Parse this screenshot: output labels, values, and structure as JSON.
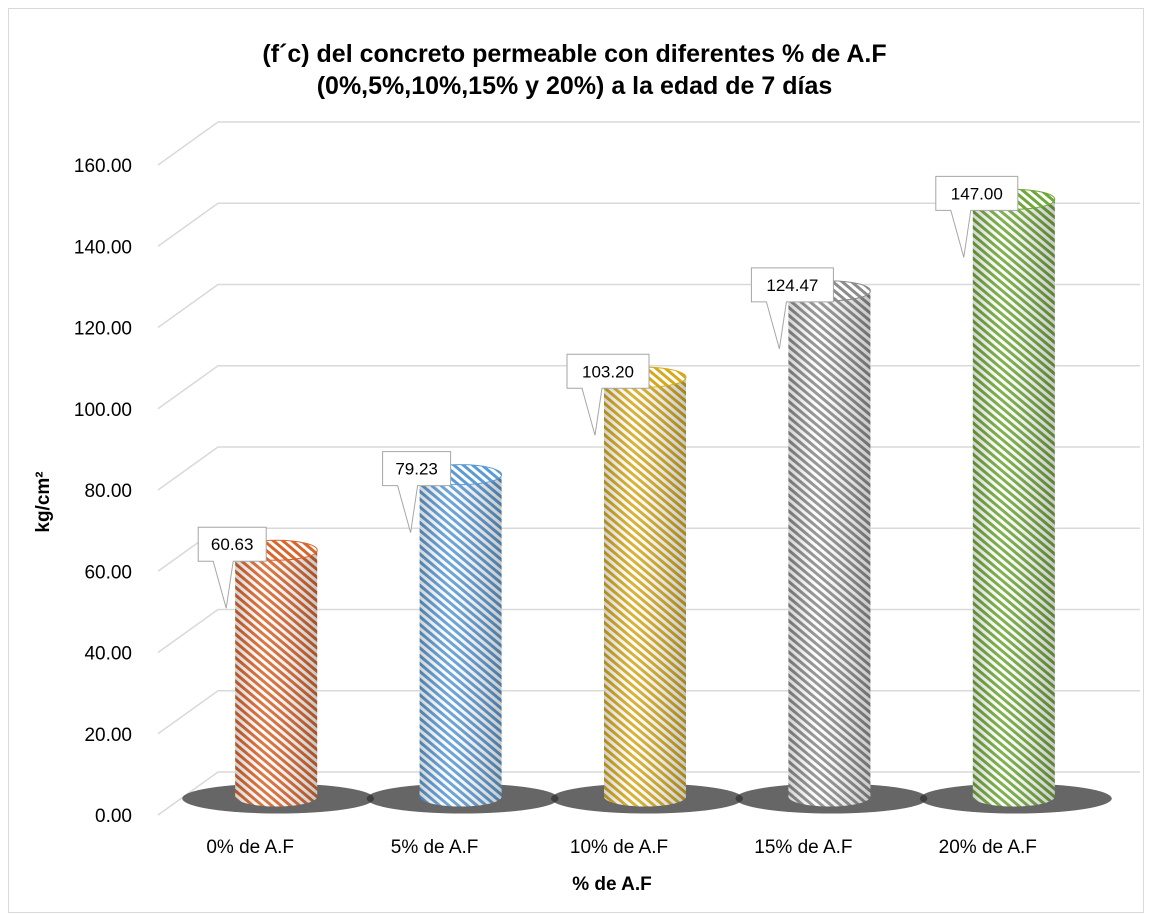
{
  "chart_data": {
    "type": "bar",
    "title_lines": [
      "(f´c) del concreto permeable con diferentes % de A.F",
      "(0%,5%,10%,15% y 20%) a la edad de 7 días"
    ],
    "xlabel": "% de A.F",
    "ylabel": "kg/cm²",
    "categories": [
      "0% de A.F",
      "5% de A.F",
      "10% de A.F",
      "15% de A.F",
      "20% de A.F"
    ],
    "values": [
      60.63,
      79.23,
      103.2,
      124.47,
      147.0
    ],
    "data_labels": [
      "60.63",
      "79.23",
      "103.20",
      "124.47",
      "147.00"
    ],
    "y_ticks": [
      "0.00",
      "20.00",
      "40.00",
      "60.00",
      "80.00",
      "100.00",
      "120.00",
      "140.00",
      "160.00"
    ],
    "ylim": [
      0,
      160
    ],
    "grid": true,
    "legend": "none",
    "bar_shape": "cylinder",
    "colors": [
      "#d9652b",
      "#5b9bd5",
      "#d4aa1c",
      "#8c8c8c",
      "#6fa838"
    ]
  }
}
